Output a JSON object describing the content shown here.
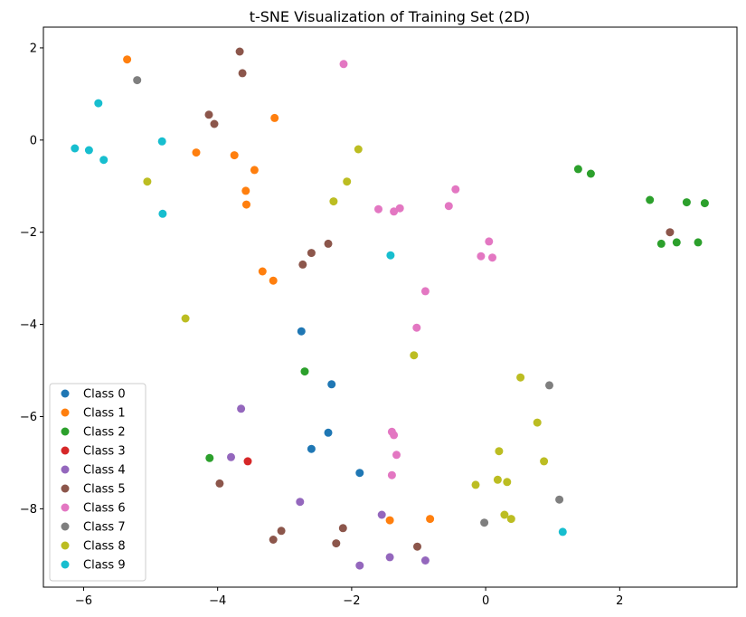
{
  "chart_data": {
    "type": "scatter",
    "title": "t-SNE Visualization of Training Set (2D)",
    "xlabel": "",
    "ylabel": "",
    "xlim": [
      -6.6,
      3.75
    ],
    "ylim": [
      -9.7,
      2.45
    ],
    "xticks": [
      {
        "value": -6,
        "label": "−6"
      },
      {
        "value": -4,
        "label": "−4"
      },
      {
        "value": -2,
        "label": "−2"
      },
      {
        "value": 0,
        "label": "0"
      },
      {
        "value": 2,
        "label": "2"
      }
    ],
    "yticks": [
      {
        "value": 2,
        "label": "2"
      },
      {
        "value": 0,
        "label": "0"
      },
      {
        "value": -2,
        "label": "−2"
      },
      {
        "value": -4,
        "label": "−4"
      },
      {
        "value": -6,
        "label": "−6"
      },
      {
        "value": -8,
        "label": "−8"
      }
    ],
    "grid": false,
    "legend_position": "lower-left",
    "series": [
      {
        "name": "Class 0",
        "color": "#1f77b4",
        "points": [
          [
            -2.75,
            -4.15
          ],
          [
            -2.3,
            -5.3
          ],
          [
            -2.35,
            -6.35
          ],
          [
            -2.6,
            -6.7
          ],
          [
            -1.88,
            -7.22
          ]
        ]
      },
      {
        "name": "Class 1",
        "color": "#ff7f0e",
        "points": [
          [
            -5.35,
            1.75
          ],
          [
            -3.15,
            0.48
          ],
          [
            -4.32,
            -0.27
          ],
          [
            -3.75,
            -0.33
          ],
          [
            -3.45,
            -0.65
          ],
          [
            -3.58,
            -1.1
          ],
          [
            -3.57,
            -1.4
          ],
          [
            -3.33,
            -2.85
          ],
          [
            -3.17,
            -3.05
          ],
          [
            -1.43,
            -8.25
          ],
          [
            -0.83,
            -8.22
          ]
        ]
      },
      {
        "name": "Class 2",
        "color": "#2ca02c",
        "points": [
          [
            1.38,
            -0.63
          ],
          [
            1.57,
            -0.73
          ],
          [
            2.45,
            -1.3
          ],
          [
            3.0,
            -1.35
          ],
          [
            3.27,
            -1.37
          ],
          [
            2.62,
            -2.25
          ],
          [
            2.85,
            -2.22
          ],
          [
            3.17,
            -2.22
          ],
          [
            -2.7,
            -5.02
          ],
          [
            -4.12,
            -6.9
          ]
        ]
      },
      {
        "name": "Class 3",
        "color": "#d62728",
        "points": [
          [
            -3.55,
            -6.97
          ]
        ]
      },
      {
        "name": "Class 4",
        "color": "#9467bd",
        "points": [
          [
            -3.65,
            -5.83
          ],
          [
            -3.8,
            -6.88
          ],
          [
            -2.77,
            -7.85
          ],
          [
            -1.55,
            -8.13
          ],
          [
            -1.43,
            -9.05
          ],
          [
            -0.9,
            -9.12
          ],
          [
            -1.88,
            -9.23
          ]
        ]
      },
      {
        "name": "Class 5",
        "color": "#8c564b",
        "points": [
          [
            -3.67,
            1.92
          ],
          [
            -3.63,
            1.45
          ],
          [
            -4.13,
            0.55
          ],
          [
            -4.05,
            0.35
          ],
          [
            2.75,
            -2.0
          ],
          [
            -2.35,
            -2.25
          ],
          [
            -2.6,
            -2.45
          ],
          [
            -2.73,
            -2.7
          ],
          [
            -3.97,
            -7.45
          ],
          [
            -3.05,
            -8.48
          ],
          [
            -3.17,
            -8.67
          ],
          [
            -2.13,
            -8.42
          ],
          [
            -2.23,
            -8.75
          ],
          [
            -1.02,
            -8.82
          ]
        ]
      },
      {
        "name": "Class 6",
        "color": "#e377c2",
        "points": [
          [
            -2.12,
            1.65
          ],
          [
            -0.45,
            -1.07
          ],
          [
            -1.28,
            -1.48
          ],
          [
            -1.37,
            -1.55
          ],
          [
            -1.6,
            -1.5
          ],
          [
            -0.55,
            -1.43
          ],
          [
            0.05,
            -2.2
          ],
          [
            -0.07,
            -2.52
          ],
          [
            0.1,
            -2.55
          ],
          [
            -0.9,
            -3.28
          ],
          [
            -1.03,
            -4.07
          ],
          [
            -1.4,
            -6.33
          ],
          [
            -1.37,
            -6.4
          ],
          [
            -1.33,
            -6.83
          ],
          [
            -1.4,
            -7.27
          ]
        ]
      },
      {
        "name": "Class 7",
        "color": "#7f7f7f",
        "points": [
          [
            -5.2,
            1.3
          ],
          [
            0.95,
            -5.32
          ],
          [
            1.1,
            -7.8
          ],
          [
            -0.02,
            -8.3
          ]
        ]
      },
      {
        "name": "Class 8",
        "color": "#bcbd22",
        "points": [
          [
            -1.9,
            -0.2
          ],
          [
            -5.05,
            -0.9
          ],
          [
            -2.07,
            -0.9
          ],
          [
            -2.27,
            -1.33
          ],
          [
            -4.48,
            -3.87
          ],
          [
            -1.07,
            -4.67
          ],
          [
            0.52,
            -5.15
          ],
          [
            0.77,
            -6.13
          ],
          [
            0.2,
            -6.75
          ],
          [
            0.87,
            -6.97
          ],
          [
            0.18,
            -7.37
          ],
          [
            0.32,
            -7.42
          ],
          [
            -0.15,
            -7.48
          ],
          [
            0.28,
            -8.13
          ],
          [
            0.38,
            -8.22
          ]
        ]
      },
      {
        "name": "Class 9",
        "color": "#17becf",
        "points": [
          [
            -5.78,
            0.8
          ],
          [
            -4.83,
            -0.03
          ],
          [
            -6.13,
            -0.18
          ],
          [
            -5.92,
            -0.22
          ],
          [
            -5.7,
            -0.43
          ],
          [
            -4.82,
            -1.6
          ],
          [
            -1.42,
            -2.5
          ],
          [
            1.15,
            -8.5
          ]
        ]
      }
    ]
  }
}
